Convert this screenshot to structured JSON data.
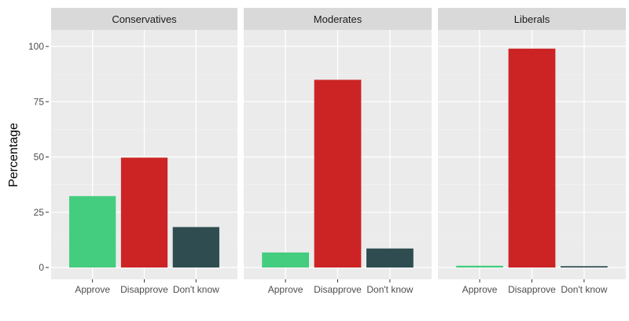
{
  "chart_data": {
    "type": "bar",
    "ylabel": "Percentage",
    "xlabel": "",
    "ylim": [
      0,
      100
    ],
    "yticks": [
      0,
      25,
      50,
      75,
      100
    ],
    "categories": [
      "Approve",
      "Disapprove",
      "Don't know"
    ],
    "colors": {
      "Approve": "#44cc7f",
      "Disapprove": "#cc2424",
      "Don't know": "#2f4d50"
    },
    "facets": [
      {
        "name": "Conservatives",
        "values": [
          32.3,
          49.7,
          18.3
        ]
      },
      {
        "name": "Moderates",
        "values": [
          6.8,
          84.9,
          8.6
        ]
      },
      {
        "name": "Liberals",
        "values": [
          0.8,
          99.0,
          0.6
        ]
      }
    ],
    "grid": true
  }
}
